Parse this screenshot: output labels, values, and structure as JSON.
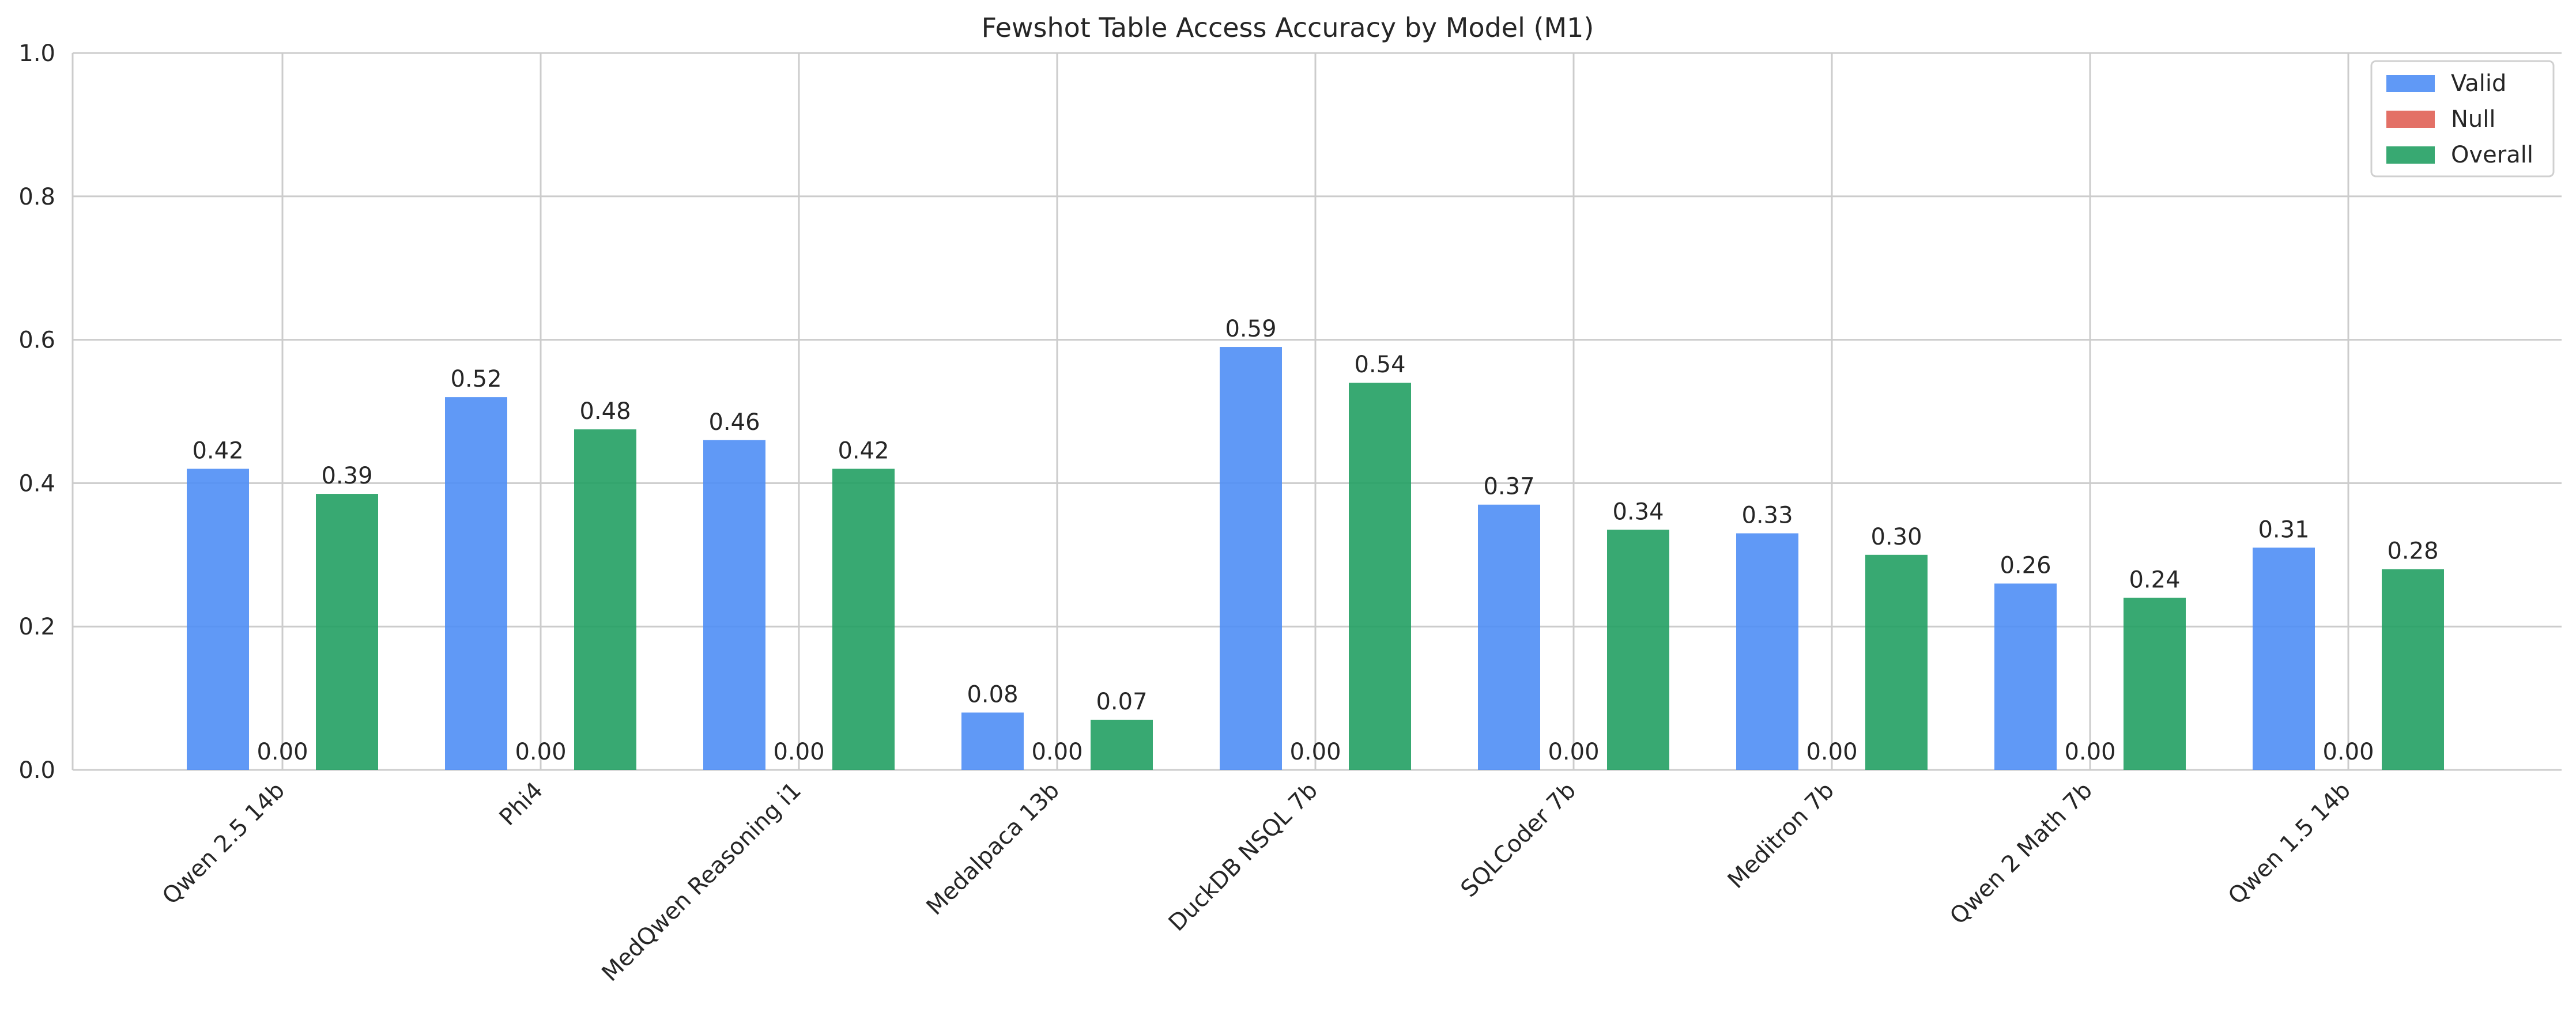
{
  "chart_data": {
    "type": "bar",
    "title": "Fewshot Table Access Accuracy by Model (M1)",
    "xlabel": "",
    "ylabel": "",
    "ylim": [
      0,
      1.0
    ],
    "yticks": [
      "0.0",
      "0.2",
      "0.4",
      "0.6",
      "0.8",
      "1.0"
    ],
    "categories": [
      "Qwen 2.5 14b",
      "Phi4",
      "MedQwen Reasoning i1",
      "Medalpaca 13b",
      "DuckDB NSQL 7b",
      "SQLCoder 7b",
      "Meditron 7b",
      "Qwen 2 Math 7b",
      "Qwen 1.5 14b"
    ],
    "series": [
      {
        "name": "Valid",
        "color": "#4f8ef5",
        "values": [
          0.42,
          0.52,
          0.46,
          0.08,
          0.59,
          0.37,
          0.33,
          0.26,
          0.31
        ],
        "labels": [
          "0.42",
          "0.52",
          "0.46",
          "0.08",
          "0.59",
          "0.37",
          "0.33",
          "0.26",
          "0.31"
        ]
      },
      {
        "name": "Null",
        "color": "#e06055",
        "values": [
          0.0,
          0.0,
          0.0,
          0.0,
          0.0,
          0.0,
          0.0,
          0.0,
          0.0
        ],
        "labels": [
          "0.00",
          "0.00",
          "0.00",
          "0.00",
          "0.00",
          "0.00",
          "0.00",
          "0.00",
          "0.00"
        ]
      },
      {
        "name": "Overall",
        "color": "#22a063",
        "values": [
          0.385,
          0.475,
          0.42,
          0.07,
          0.54,
          0.335,
          0.3,
          0.24,
          0.28
        ],
        "labels": [
          "0.39",
          "0.48",
          "0.42",
          "0.07",
          "0.54",
          "0.34",
          "0.30",
          "0.24",
          "0.28"
        ]
      }
    ],
    "grid": true,
    "legend": "top-right"
  }
}
